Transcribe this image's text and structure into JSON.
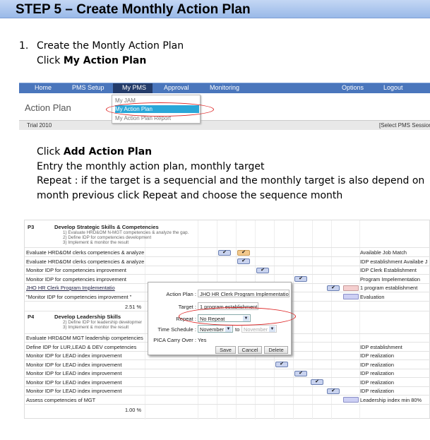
{
  "step": {
    "title": "STEP 5 – Create Monthly Action Plan"
  },
  "instructions": {
    "num": "1.",
    "line1": "Create the Montly Action Plan",
    "line2_pre": "Click ",
    "line2_bold": "My Action Plan",
    "para_line1_pre": "Click ",
    "para_line1_bold": "Add Action Plan",
    "para_line2": "Entry the monthly action plan, monthly target",
    "para_line3": "Repeat : if the target is a sequencial  and the monthly target is also depend on",
    "para_line4": "month previous click Repeat and choose the sequence month"
  },
  "nav": {
    "items": [
      "Home",
      "PMS Setup",
      "My PMS",
      "Approval",
      "Monitoring",
      "Options",
      "Logout"
    ],
    "page_title": "Action Plan",
    "dropdown": [
      "My JAM",
      "My Action Plan",
      "My Action Plan Report"
    ],
    "trial": "Trial 2010",
    "select_session": "[Select PMS Session"
  },
  "gantt": {
    "p3_code": "P3",
    "p3_title": "Develop Strategic Skills & Competencies",
    "p3_sub": [
      "1) Evaluate HRD&OM N-MGT competencies & analyze the gap.",
      "2) Define IDP for competencies development",
      "3) Implement & monitor the result"
    ],
    "p3_rows": [
      {
        "name": "Evaluate HRD&OM clerks competencies & analyze",
        "result": "Available Job Match"
      },
      {
        "name": "Evaluate HRD&OM clerks competencies & analyze",
        "result": "IDP establishment Availabe J"
      },
      {
        "name": "Monitor IDP for competencies improvement",
        "result": "IDP Clerk Establishment"
      },
      {
        "name": "Monitor IDP for competencies improvement",
        "result": "Program Impelementation"
      },
      {
        "name": "JHO HR Clerk Program Implementatio",
        "result": "1 program establishment"
      },
      {
        "name": "\"Monitor IDP for competencies improvement \"",
        "result": "Evaluation"
      }
    ],
    "p3_pct": "2.51 %",
    "p4_code": "P4",
    "p4_title": "Develop Leadership Skills",
    "p4_sub": [
      "2) Define IDP for leadership developmer",
      "3) Implement & monitor the result"
    ],
    "p4_rows": [
      {
        "name": "Evaluate HRD&OM MGT leadership competencies",
        "result": ""
      },
      {
        "name": "Define IDP for LUR,LEAD & DEV competencies",
        "result": "IDP establishment"
      },
      {
        "name": "Monitor IDP for LEAD index improvement",
        "result": "IDP realization"
      },
      {
        "name": "Monitor IDP for LEAD index improvement",
        "result": "IDP realization"
      },
      {
        "name": "Monitor IDP for LEAD index improvement",
        "result": "IDP realization"
      },
      {
        "name": "Monitor IDP for LEAD index improvement",
        "result": "IDP realization"
      },
      {
        "name": "Monitor IDP for LEAD index improvement",
        "result": "IDP realization"
      },
      {
        "name": "Assess competencies of MGT",
        "result": "Leadership index min 80%"
      }
    ],
    "p4_pct": "1.00 %",
    "check": "✔"
  },
  "dialog": {
    "action_plan_label": "Action Plan :",
    "action_plan_value": "JHO HR Clerk Program Implementatio",
    "target_label": "Target :",
    "target_value": "1 program establishment",
    "repeat_label": "Repeat :",
    "repeat_value": "No Repeat",
    "schedule_label": "Time Schedule :",
    "schedule_from": "November",
    "schedule_to_label": "to",
    "schedule_to": "November",
    "pica_label": "PICA Carry Over :",
    "pica_value": "Yes",
    "save": "Save",
    "cancel": "Cancel",
    "delete": "Delete"
  }
}
